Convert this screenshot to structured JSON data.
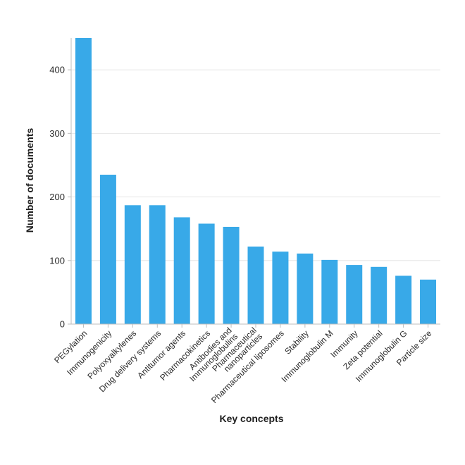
{
  "colors": {
    "bar": "#38a9e8"
  },
  "chart_data": {
    "type": "bar",
    "categories": [
      [
        "PEGylation"
      ],
      [
        "Immunogenicity"
      ],
      [
        "Polyoxyalkylenes"
      ],
      [
        "Drug delivery systems"
      ],
      [
        "Antitumor agents"
      ],
      [
        "Pharmacokinetics"
      ],
      [
        "Antibodies and",
        "Immunoglobulins"
      ],
      [
        "Pharmaceutical",
        "nanoparticles"
      ],
      [
        "Pharmaceutical liposomes"
      ],
      [
        "Stability"
      ],
      [
        "Immunoglobulin M"
      ],
      [
        "Immunity"
      ],
      [
        "Zeta potential"
      ],
      [
        "Immunoglobulin G"
      ],
      [
        "Particle size"
      ]
    ],
    "values": [
      450,
      235,
      187,
      187,
      168,
      158,
      153,
      122,
      114,
      111,
      101,
      93,
      90,
      76,
      70
    ],
    "xlabel": "Key concepts",
    "ylabel": "Number of documents",
    "ylim": [
      0,
      450
    ],
    "yticks": [
      0,
      100,
      200,
      300,
      400
    ],
    "grid": true
  }
}
